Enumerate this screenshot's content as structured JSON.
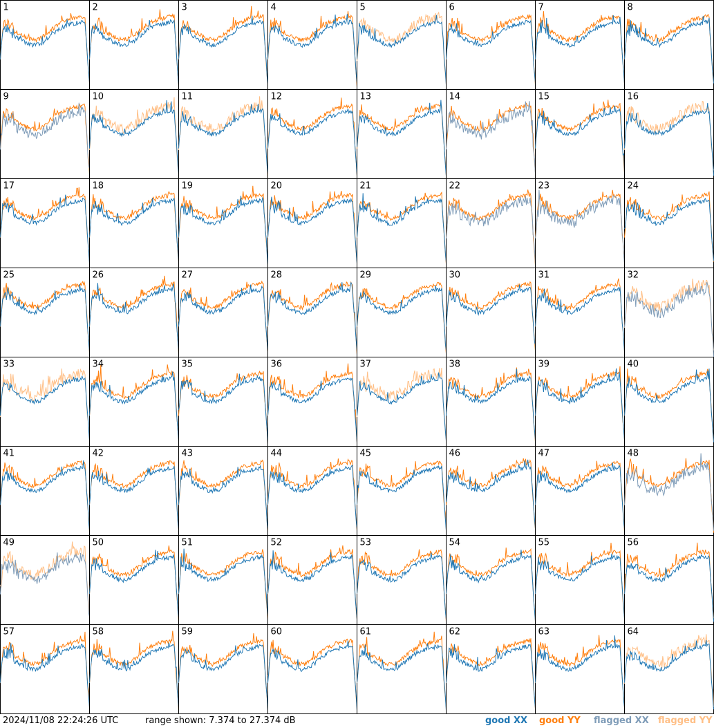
{
  "chart_data": {
    "type": "line",
    "layout": {
      "columns": 8,
      "rows": 8
    },
    "panels": [
      {
        "id": "1",
        "xx": "good",
        "yy": "good"
      },
      {
        "id": "2",
        "xx": "good",
        "yy": "good"
      },
      {
        "id": "3",
        "xx": "good",
        "yy": "good"
      },
      {
        "id": "4",
        "xx": "good",
        "yy": "good"
      },
      {
        "id": "5",
        "xx": "good",
        "yy": "flagged"
      },
      {
        "id": "6",
        "xx": "good",
        "yy": "good"
      },
      {
        "id": "7",
        "xx": "good",
        "yy": "good"
      },
      {
        "id": "8",
        "xx": "good",
        "yy": "good"
      },
      {
        "id": "9",
        "xx": "flagged",
        "yy": "good"
      },
      {
        "id": "10",
        "xx": "good",
        "yy": "flagged"
      },
      {
        "id": "11",
        "xx": "good",
        "yy": "flagged"
      },
      {
        "id": "12",
        "xx": "good",
        "yy": "good"
      },
      {
        "id": "13",
        "xx": "good",
        "yy": "good"
      },
      {
        "id": "14",
        "xx": "flagged",
        "yy": "good"
      },
      {
        "id": "15",
        "xx": "good",
        "yy": "good"
      },
      {
        "id": "16",
        "xx": "good",
        "yy": "flagged"
      },
      {
        "id": "17",
        "xx": "good",
        "yy": "good"
      },
      {
        "id": "18",
        "xx": "good",
        "yy": "good"
      },
      {
        "id": "19",
        "xx": "good",
        "yy": "good"
      },
      {
        "id": "20",
        "xx": "good",
        "yy": "good"
      },
      {
        "id": "21",
        "xx": "good",
        "yy": "good"
      },
      {
        "id": "22",
        "xx": "flagged",
        "yy": "good"
      },
      {
        "id": "23",
        "xx": "flagged",
        "yy": "good"
      },
      {
        "id": "24",
        "xx": "good",
        "yy": "good"
      },
      {
        "id": "25",
        "xx": "good",
        "yy": "good"
      },
      {
        "id": "26",
        "xx": "good",
        "yy": "good"
      },
      {
        "id": "27",
        "xx": "good",
        "yy": "good"
      },
      {
        "id": "28",
        "xx": "good",
        "yy": "good"
      },
      {
        "id": "29",
        "xx": "good",
        "yy": "good"
      },
      {
        "id": "30",
        "xx": "good",
        "yy": "good"
      },
      {
        "id": "31",
        "xx": "good",
        "yy": "good"
      },
      {
        "id": "32",
        "xx": "flagged",
        "yy": "flagged"
      },
      {
        "id": "33",
        "xx": "good",
        "yy": "flagged"
      },
      {
        "id": "34",
        "xx": "good",
        "yy": "good"
      },
      {
        "id": "35",
        "xx": "good",
        "yy": "good"
      },
      {
        "id": "36",
        "xx": "good",
        "yy": "good"
      },
      {
        "id": "37",
        "xx": "good",
        "yy": "flagged"
      },
      {
        "id": "38",
        "xx": "good",
        "yy": "good"
      },
      {
        "id": "39",
        "xx": "good",
        "yy": "good"
      },
      {
        "id": "40",
        "xx": "good",
        "yy": "good"
      },
      {
        "id": "41",
        "xx": "good",
        "yy": "good"
      },
      {
        "id": "42",
        "xx": "good",
        "yy": "good"
      },
      {
        "id": "43",
        "xx": "good",
        "yy": "good"
      },
      {
        "id": "44",
        "xx": "good",
        "yy": "good"
      },
      {
        "id": "45",
        "xx": "good",
        "yy": "good"
      },
      {
        "id": "46",
        "xx": "good",
        "yy": "good"
      },
      {
        "id": "47",
        "xx": "good",
        "yy": "good"
      },
      {
        "id": "48",
        "xx": "flagged",
        "yy": "good"
      },
      {
        "id": "49",
        "xx": "flagged",
        "yy": "flagged"
      },
      {
        "id": "50",
        "xx": "good",
        "yy": "good"
      },
      {
        "id": "51",
        "xx": "good",
        "yy": "good"
      },
      {
        "id": "52",
        "xx": "good",
        "yy": "good"
      },
      {
        "id": "53",
        "xx": "good",
        "yy": "good"
      },
      {
        "id": "54",
        "xx": "good",
        "yy": "good"
      },
      {
        "id": "55",
        "xx": "good",
        "yy": "good"
      },
      {
        "id": "56",
        "xx": "good",
        "yy": "good"
      },
      {
        "id": "57",
        "xx": "good",
        "yy": "good"
      },
      {
        "id": "58",
        "xx": "good",
        "yy": "good"
      },
      {
        "id": "59",
        "xx": "good",
        "yy": "good"
      },
      {
        "id": "60",
        "xx": "good",
        "yy": "good"
      },
      {
        "id": "61",
        "xx": "good",
        "yy": "good"
      },
      {
        "id": "62",
        "xx": "good",
        "yy": "good"
      },
      {
        "id": "63",
        "xx": "good",
        "yy": "good"
      },
      {
        "id": "64",
        "xx": "good",
        "yy": "flagged"
      }
    ],
    "ylim": [
      7.374,
      27.374
    ],
    "timestamp": "2024/11/08 22:24:26 UTC",
    "range_text": "range shown: 7.374 to 27.374 dB",
    "legend": [
      {
        "label": "good XX",
        "color": "#1f77b4"
      },
      {
        "label": "good YY",
        "color": "#ff7f0e"
      },
      {
        "label": "flagged XX",
        "color": "#7f9cb8"
      },
      {
        "label": "flagged YY",
        "color": "#ffbf86"
      }
    ],
    "legend_position": "bottom-right",
    "grid": false
  }
}
